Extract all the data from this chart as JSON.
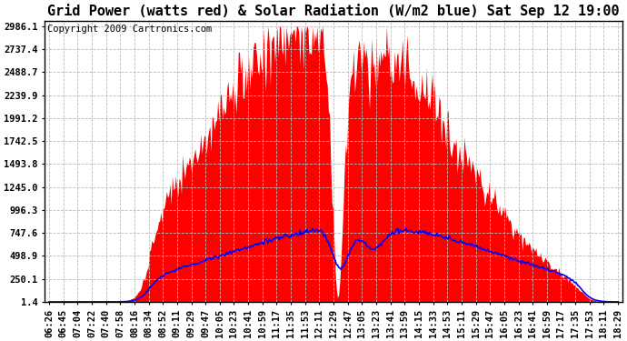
{
  "title": "Grid Power (watts red) & Solar Radiation (W/m2 blue) Sat Sep 12 19:00",
  "copyright": "Copyright 2009 Cartronics.com",
  "yticks": [
    1.4,
    250.1,
    498.9,
    747.6,
    996.3,
    1245.0,
    1493.8,
    1742.5,
    1991.2,
    2239.9,
    2488.7,
    2737.4,
    2986.1
  ],
  "ymin": 0,
  "ymax": 2986.1,
  "background_color": "#ffffff",
  "plot_bg": "#ffffff",
  "grid_color": "#bbbbbb",
  "red_color": "#ff0000",
  "blue_color": "#0000ff",
  "title_fontsize": 11,
  "tick_fontsize": 7.5,
  "copyright_fontsize": 7.5,
  "time_labels": [
    "06:26",
    "06:45",
    "07:04",
    "07:22",
    "07:40",
    "07:58",
    "08:16",
    "08:34",
    "08:52",
    "09:11",
    "09:29",
    "09:47",
    "10:05",
    "10:23",
    "10:41",
    "10:59",
    "11:17",
    "11:35",
    "11:53",
    "12:11",
    "12:29",
    "12:47",
    "13:05",
    "13:23",
    "13:41",
    "13:59",
    "14:15",
    "14:33",
    "14:53",
    "15:11",
    "15:29",
    "15:47",
    "16:05",
    "16:23",
    "16:41",
    "16:59",
    "17:17",
    "17:35",
    "17:53",
    "18:11",
    "18:29"
  ]
}
